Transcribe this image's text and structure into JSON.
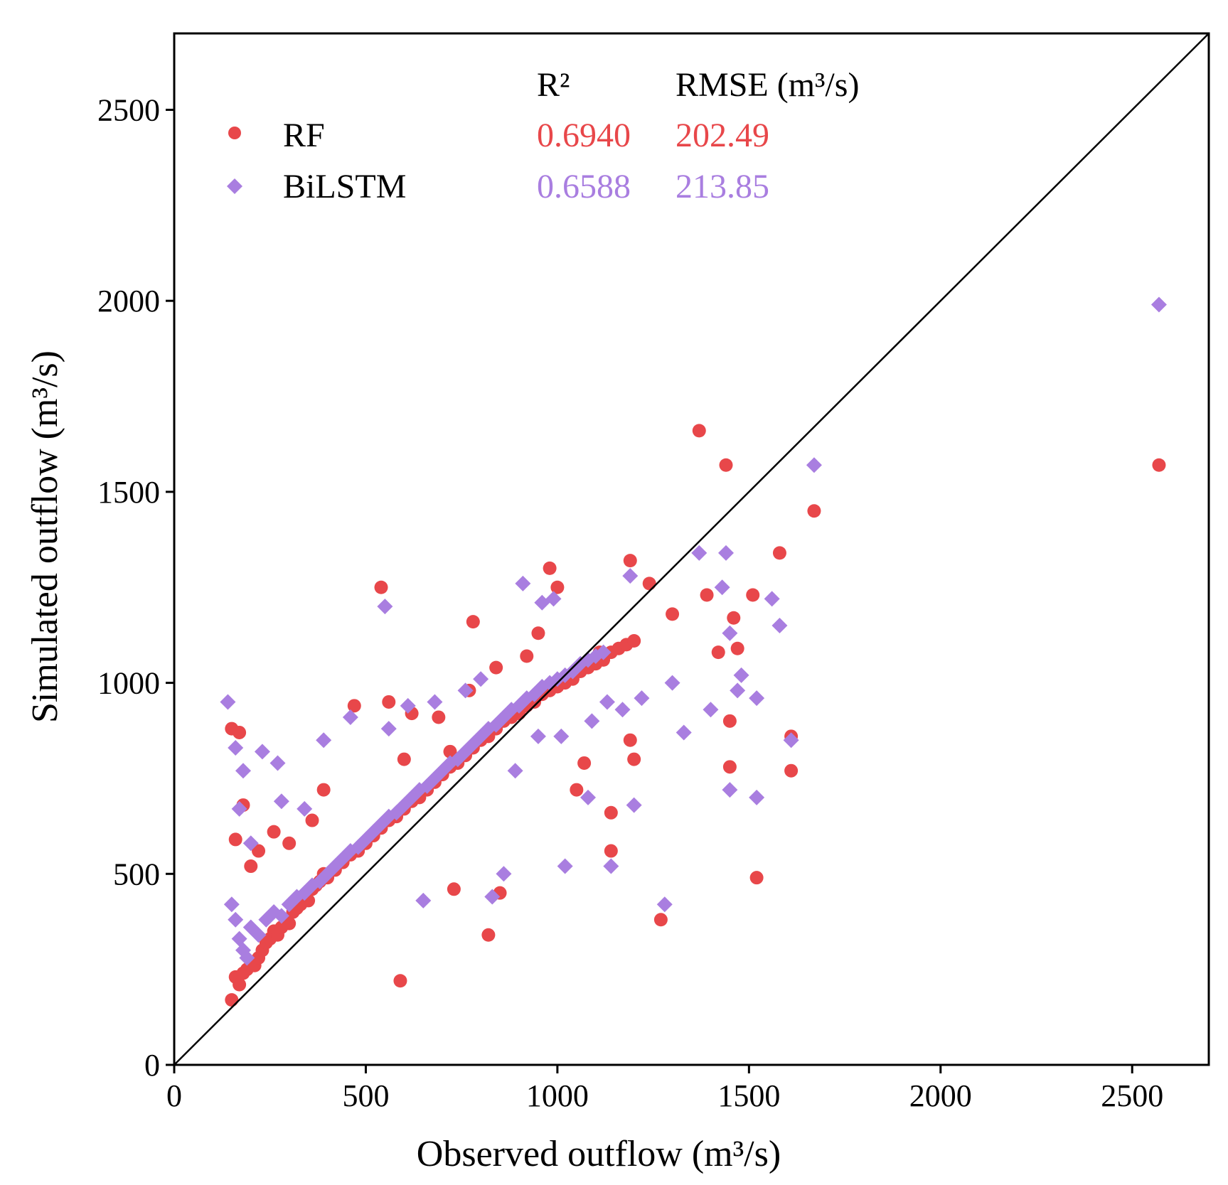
{
  "chart_data": {
    "type": "scatter",
    "xlabel": "Observed outflow (m³/s)",
    "ylabel": "Simulated outflow (m³/s)",
    "xlim": [
      0,
      2700
    ],
    "ylim": [
      0,
      2700
    ],
    "xticks": [
      0,
      500,
      1000,
      1500,
      2000,
      2500
    ],
    "yticks": [
      0,
      500,
      1000,
      1500,
      2000,
      2500
    ],
    "reference_line": "1:1",
    "stats_header": {
      "r2": "R²",
      "rmse": "RMSE (m³/s)"
    },
    "series": [
      {
        "name": "RF",
        "marker": "circle",
        "color": "#e8474a",
        "r2": "0.6940",
        "rmse": "202.49",
        "points": [
          [
            150,
            170
          ],
          [
            160,
            230
          ],
          [
            170,
            210
          ],
          [
            180,
            240
          ],
          [
            190,
            250
          ],
          [
            200,
            270
          ],
          [
            210,
            260
          ],
          [
            220,
            280
          ],
          [
            230,
            300
          ],
          [
            240,
            320
          ],
          [
            250,
            330
          ],
          [
            260,
            350
          ],
          [
            270,
            340
          ],
          [
            280,
            360
          ],
          [
            290,
            380
          ],
          [
            300,
            370
          ],
          [
            310,
            400
          ],
          [
            320,
            410
          ],
          [
            330,
            420
          ],
          [
            340,
            440
          ],
          [
            350,
            430
          ],
          [
            360,
            460
          ],
          [
            370,
            470
          ],
          [
            380,
            480
          ],
          [
            390,
            500
          ],
          [
            400,
            490
          ],
          [
            420,
            510
          ],
          [
            440,
            530
          ],
          [
            460,
            550
          ],
          [
            480,
            560
          ],
          [
            500,
            580
          ],
          [
            520,
            600
          ],
          [
            540,
            620
          ],
          [
            560,
            640
          ],
          [
            580,
            650
          ],
          [
            600,
            670
          ],
          [
            620,
            690
          ],
          [
            640,
            700
          ],
          [
            660,
            720
          ],
          [
            680,
            740
          ],
          [
            700,
            760
          ],
          [
            720,
            780
          ],
          [
            740,
            790
          ],
          [
            760,
            810
          ],
          [
            780,
            830
          ],
          [
            800,
            850
          ],
          [
            820,
            860
          ],
          [
            840,
            880
          ],
          [
            860,
            900
          ],
          [
            880,
            910
          ],
          [
            900,
            920
          ],
          [
            920,
            940
          ],
          [
            940,
            950
          ],
          [
            960,
            970
          ],
          [
            980,
            980
          ],
          [
            1000,
            990
          ],
          [
            1020,
            1000
          ],
          [
            1040,
            1010
          ],
          [
            1060,
            1030
          ],
          [
            1080,
            1040
          ],
          [
            1100,
            1050
          ],
          [
            1120,
            1060
          ],
          [
            1140,
            1080
          ],
          [
            1160,
            1090
          ],
          [
            1180,
            1100
          ],
          [
            1200,
            1110
          ],
          [
            150,
            880
          ],
          [
            170,
            870
          ],
          [
            180,
            680
          ],
          [
            160,
            590
          ],
          [
            200,
            520
          ],
          [
            220,
            560
          ],
          [
            260,
            610
          ],
          [
            300,
            580
          ],
          [
            360,
            640
          ],
          [
            390,
            720
          ],
          [
            470,
            940
          ],
          [
            540,
            1250
          ],
          [
            560,
            950
          ],
          [
            600,
            800
          ],
          [
            620,
            920
          ],
          [
            690,
            910
          ],
          [
            780,
            1160
          ],
          [
            850,
            450
          ],
          [
            980,
            1300
          ],
          [
            1000,
            1250
          ],
          [
            1190,
            1320
          ],
          [
            1240,
            1260
          ],
          [
            1300,
            1180
          ],
          [
            1370,
            1660
          ],
          [
            1440,
            1570
          ],
          [
            1460,
            1170
          ],
          [
            1470,
            1090
          ],
          [
            1510,
            1230
          ],
          [
            1520,
            490
          ],
          [
            1580,
            1340
          ],
          [
            1610,
            860
          ],
          [
            1610,
            770
          ],
          [
            1670,
            1450
          ],
          [
            2570,
            1570
          ],
          [
            590,
            220
          ],
          [
            820,
            340
          ],
          [
            730,
            460
          ],
          [
            1140,
            660
          ],
          [
            1140,
            560
          ],
          [
            1270,
            380
          ],
          [
            1390,
            1230
          ],
          [
            1420,
            1080
          ],
          [
            1450,
            900
          ],
          [
            1450,
            780
          ],
          [
            720,
            820
          ],
          [
            770,
            980
          ],
          [
            840,
            1040
          ],
          [
            920,
            1070
          ],
          [
            950,
            1130
          ],
          [
            1050,
            720
          ],
          [
            1070,
            790
          ],
          [
            1110,
            1080
          ],
          [
            1190,
            850
          ],
          [
            1200,
            800
          ]
        ]
      },
      {
        "name": "BiLSTM",
        "marker": "diamond",
        "color": "#a97ee0",
        "r2": "0.6588",
        "rmse": "213.85",
        "points": [
          [
            140,
            950
          ],
          [
            150,
            420
          ],
          [
            160,
            380
          ],
          [
            170,
            330
          ],
          [
            180,
            300
          ],
          [
            190,
            280
          ],
          [
            200,
            360
          ],
          [
            220,
            340
          ],
          [
            240,
            380
          ],
          [
            260,
            400
          ],
          [
            280,
            390
          ],
          [
            300,
            420
          ],
          [
            320,
            440
          ],
          [
            340,
            450
          ],
          [
            360,
            470
          ],
          [
            380,
            480
          ],
          [
            400,
            500
          ],
          [
            420,
            520
          ],
          [
            440,
            540
          ],
          [
            460,
            560
          ],
          [
            480,
            570
          ],
          [
            500,
            590
          ],
          [
            520,
            610
          ],
          [
            540,
            630
          ],
          [
            560,
            650
          ],
          [
            580,
            660
          ],
          [
            600,
            680
          ],
          [
            620,
            700
          ],
          [
            640,
            720
          ],
          [
            660,
            730
          ],
          [
            680,
            750
          ],
          [
            700,
            770
          ],
          [
            720,
            790
          ],
          [
            740,
            800
          ],
          [
            760,
            820
          ],
          [
            780,
            840
          ],
          [
            800,
            860
          ],
          [
            820,
            880
          ],
          [
            840,
            890
          ],
          [
            860,
            910
          ],
          [
            880,
            930
          ],
          [
            900,
            940
          ],
          [
            920,
            960
          ],
          [
            940,
            970
          ],
          [
            960,
            990
          ],
          [
            980,
            1000
          ],
          [
            1000,
            1010
          ],
          [
            1020,
            1020
          ],
          [
            1040,
            1030
          ],
          [
            1060,
            1050
          ],
          [
            1080,
            1060
          ],
          [
            1100,
            1070
          ],
          [
            1120,
            1080
          ],
          [
            160,
            830
          ],
          [
            180,
            770
          ],
          [
            170,
            670
          ],
          [
            200,
            580
          ],
          [
            230,
            820
          ],
          [
            270,
            790
          ],
          [
            280,
            690
          ],
          [
            340,
            670
          ],
          [
            390,
            850
          ],
          [
            460,
            910
          ],
          [
            550,
            1200
          ],
          [
            560,
            880
          ],
          [
            610,
            940
          ],
          [
            680,
            950
          ],
          [
            760,
            980
          ],
          [
            800,
            1010
          ],
          [
            910,
            1260
          ],
          [
            960,
            1210
          ],
          [
            990,
            1220
          ],
          [
            1020,
            520
          ],
          [
            1140,
            520
          ],
          [
            1190,
            1280
          ],
          [
            1280,
            420
          ],
          [
            1370,
            1340
          ],
          [
            1440,
            1340
          ],
          [
            1430,
            1250
          ],
          [
            1450,
            1130
          ],
          [
            1480,
            1020
          ],
          [
            1520,
            960
          ],
          [
            1520,
            700
          ],
          [
            1560,
            1220
          ],
          [
            1580,
            1150
          ],
          [
            1610,
            850
          ],
          [
            1670,
            1570
          ],
          [
            2570,
            1990
          ],
          [
            650,
            430
          ],
          [
            830,
            440
          ],
          [
            860,
            500
          ],
          [
            1080,
            700
          ],
          [
            1200,
            680
          ],
          [
            1300,
            1000
          ],
          [
            1330,
            870
          ],
          [
            1400,
            930
          ],
          [
            1450,
            720
          ],
          [
            1470,
            980
          ],
          [
            890,
            770
          ],
          [
            950,
            860
          ],
          [
            1010,
            860
          ],
          [
            1090,
            900
          ],
          [
            1130,
            950
          ],
          [
            1170,
            930
          ],
          [
            1220,
            960
          ]
        ]
      }
    ]
  }
}
